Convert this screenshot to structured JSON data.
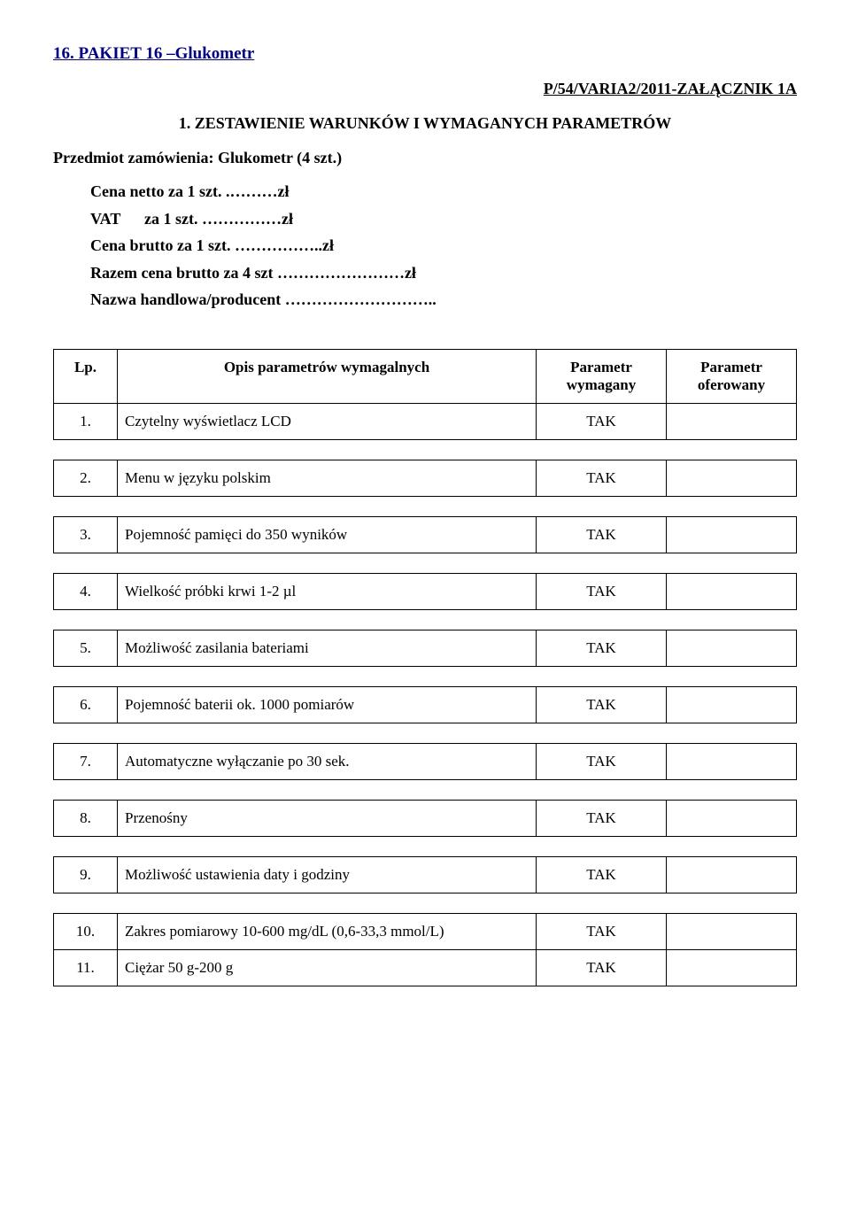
{
  "section_title": "16. PAKIET 16 –Glukometr",
  "attachment_id": "P/54/VARIA2/2011-ZAŁĄCZNIK 1A",
  "heading": "1. ZESTAWIENIE WARUNKÓW I WYMAGANYCH PARAMETRÓW",
  "subject": "Przedmiot zamówienia: Glukometr (4 szt.)",
  "price_lines": {
    "l1": "Cena netto za 1 szt. .………zł",
    "l2": "VAT      za 1 szt. ……………zł",
    "l3": "Cena brutto za 1 szt. ……………..zł",
    "l4": "Razem cena brutto za 4 szt ……………………zł",
    "l5": "Nazwa handlowa/producent ……………………….."
  },
  "table": {
    "headers": {
      "lp": "Lp.",
      "desc": "Opis parametrów wymagalnych",
      "req": "Parametr wymagany",
      "off": "Parametr oferowany"
    },
    "rows": [
      {
        "n": "1.",
        "desc": "Czytelny wyświetlacz LCD",
        "req": "TAK"
      },
      {
        "n": "2.",
        "desc": "Menu w języku polskim",
        "req": "TAK"
      },
      {
        "n": "3.",
        "desc": "Pojemność pamięci do 350 wyników",
        "req": "TAK"
      },
      {
        "n": "4.",
        "desc": "Wielkość próbki krwi 1-2 µl",
        "req": "TAK"
      },
      {
        "n": "5.",
        "desc": "Możliwość zasilania bateriami",
        "req": "TAK"
      },
      {
        "n": "6.",
        "desc": "Pojemność baterii ok. 1000 pomiarów",
        "req": "TAK"
      },
      {
        "n": "7.",
        "desc": "Automatyczne wyłączanie po 30 sek.",
        "req": "TAK"
      },
      {
        "n": "8.",
        "desc": "Przenośny",
        "req": "TAK"
      },
      {
        "n": "9.",
        "desc": "Możliwość ustawienia daty i godziny",
        "req": "TAK"
      },
      {
        "n": "10.",
        "desc": "Zakres pomiarowy 10-600 mg/dL (0,6-33,3 mmol/L)",
        "req": "TAK"
      },
      {
        "n": "11.",
        "desc": "Ciężar 50 g-200 g",
        "req": "TAK"
      }
    ]
  }
}
